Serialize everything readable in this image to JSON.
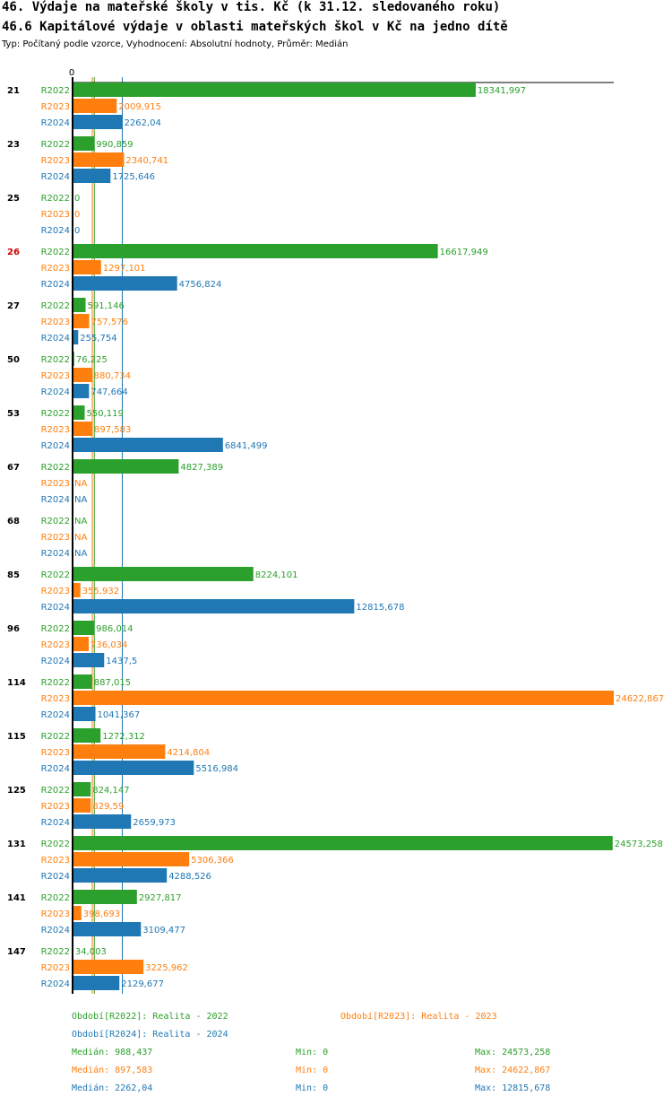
{
  "header": {
    "title1": "46. Výdaje na mateřské školy v tis. Kč (k 31.12. sledovaného roku)",
    "title2": "46.6 Kapitálové výdaje v oblasti mateřských škol v Kč na jedno dítě",
    "subtitle": "Typ: Počítaný podle vzorce, Vyhodnocení: Absolutní hodnoty, Průměr: Medián"
  },
  "colors": {
    "R2022": "#2ca02c",
    "R2023": "#ff7f0e",
    "R2024": "#1f77b4",
    "highlight": "#cc0000",
    "label": "#000000"
  },
  "chart_data": {
    "type": "bar",
    "orientation": "horizontal",
    "title": "46.6 Kapitálové výdaje v oblasti mateřských škol v Kč na jedno dítě",
    "axis_zero_label": "0",
    "xlim": [
      0,
      24622.867
    ],
    "series_names": [
      "R2022",
      "R2023",
      "R2024"
    ],
    "highlight_category": "26",
    "categories": [
      {
        "id": "21",
        "values": [
          18341.997,
          2009.915,
          2262.04
        ],
        "labels": [
          "18341,997",
          "2009,915",
          "2262,04"
        ]
      },
      {
        "id": "23",
        "values": [
          990.859,
          2340.741,
          1725.646
        ],
        "labels": [
          "990,859",
          "2340,741",
          "1725,646"
        ]
      },
      {
        "id": "25",
        "values": [
          0,
          0,
          0
        ],
        "labels": [
          "0",
          "0",
          "0"
        ]
      },
      {
        "id": "26",
        "values": [
          16617.949,
          1297.101,
          4756.824
        ],
        "labels": [
          "16617,949",
          "1297,101",
          "4756,824"
        ]
      },
      {
        "id": "27",
        "values": [
          591.146,
          757.576,
          255.754
        ],
        "labels": [
          "591,146",
          "757,576",
          "255,754"
        ]
      },
      {
        "id": "50",
        "values": [
          76.225,
          880.734,
          747.664
        ],
        "labels": [
          "76,225",
          "880,734",
          "747,664"
        ]
      },
      {
        "id": "53",
        "values": [
          550.119,
          897.583,
          6841.499
        ],
        "labels": [
          "550,119",
          "897,583",
          "6841,499"
        ]
      },
      {
        "id": "67",
        "values": [
          4827.389,
          null,
          null
        ],
        "labels": [
          "4827,389",
          "NA",
          "NA"
        ]
      },
      {
        "id": "68",
        "values": [
          null,
          null,
          null
        ],
        "labels": [
          "NA",
          "NA",
          "NA"
        ]
      },
      {
        "id": "85",
        "values": [
          8224.101,
          355.932,
          12815.678
        ],
        "labels": [
          "8224,101",
          "355,932",
          "12815,678"
        ]
      },
      {
        "id": "96",
        "values": [
          986.014,
          736.034,
          1437.5
        ],
        "labels": [
          "986,014",
          "736,034",
          "1437,5"
        ]
      },
      {
        "id": "114",
        "values": [
          887.015,
          24622.867,
          1041.367
        ],
        "labels": [
          "887,015",
          "24622,867",
          "1041,367"
        ]
      },
      {
        "id": "115",
        "values": [
          1272.312,
          4214.804,
          5516.984
        ],
        "labels": [
          "1272,312",
          "4214,804",
          "5516,984"
        ]
      },
      {
        "id": "125",
        "values": [
          824.147,
          829.59,
          2659.973
        ],
        "labels": [
          "824,147",
          "829,59",
          "2659,973"
        ]
      },
      {
        "id": "131",
        "values": [
          24573.258,
          5306.366,
          4288.526
        ],
        "labels": [
          "24573,258",
          "5306,366",
          "4288,526"
        ]
      },
      {
        "id": "141",
        "values": [
          2927.817,
          398.693,
          3109.477
        ],
        "labels": [
          "2927,817",
          "398,693",
          "3109,477"
        ]
      },
      {
        "id": "147",
        "values": [
          34.003,
          3225.962,
          2129.677
        ],
        "labels": [
          "34,003",
          "3225,962",
          "2129,677"
        ]
      }
    ],
    "medians": [
      988.437,
      897.583,
      2262.04
    ]
  },
  "legend": {
    "r2022_name": "Období[R2022]: Realita - 2022",
    "r2023_name": "Období[R2023]: Realita - 2023",
    "r2024_name": "Období[R2024]: Realita - 2024",
    "r2022_median": "Medián: 988,437",
    "r2023_median": "Medián: 897,583",
    "r2024_median": "Medián: 2262,04",
    "r2022_min": "Min: 0",
    "r2023_min": "Min: 0",
    "r2024_min": "Min: 0",
    "r2022_max": "Max: 24573,258",
    "r2023_max": "Max: 24622,867",
    "r2024_max": "Max: 12815,678"
  }
}
